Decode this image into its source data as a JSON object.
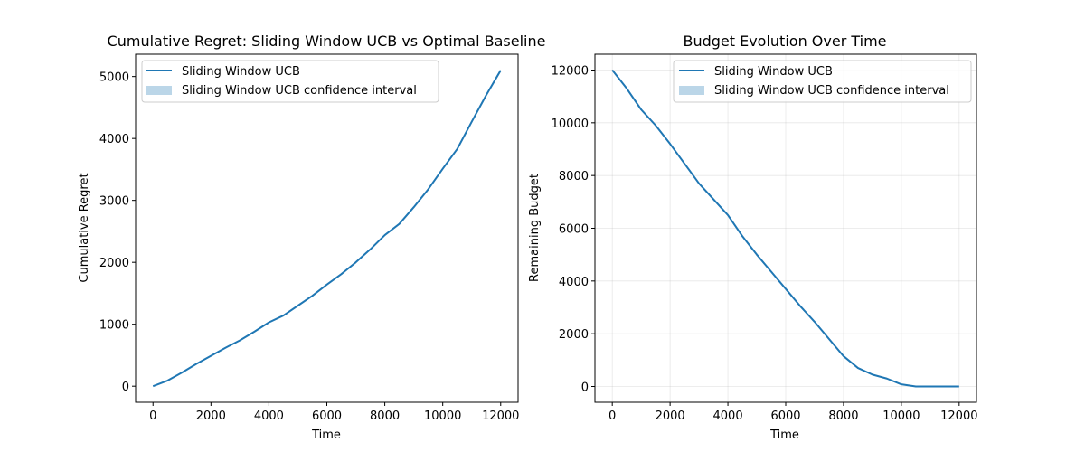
{
  "chart_data": [
    {
      "type": "line",
      "title": "Cumulative Regret: Sliding Window UCB vs Optimal Baseline",
      "xlabel": "Time",
      "ylabel": "Cumulative Regret",
      "xlim": [
        -600,
        12600
      ],
      "ylim": [
        -260,
        5360
      ],
      "xticks": [
        0,
        2000,
        4000,
        6000,
        8000,
        10000,
        12000
      ],
      "yticks": [
        0,
        1000,
        2000,
        3000,
        4000,
        5000
      ],
      "grid": false,
      "legend_position": "top-left",
      "legend": [
        "Sliding Window UCB",
        "Sliding Window UCB confidence interval"
      ],
      "series": [
        {
          "name": "Sliding Window UCB",
          "color": "#1f77b4",
          "x": [
            0,
            500,
            1000,
            1500,
            2000,
            2500,
            3000,
            3500,
            4000,
            4500,
            5000,
            5500,
            6000,
            6500,
            7000,
            7500,
            8000,
            8500,
            9000,
            9500,
            10000,
            10500,
            11000,
            11500,
            12000
          ],
          "y": [
            0,
            90,
            220,
            360,
            490,
            620,
            740,
            880,
            1030,
            1140,
            1300,
            1460,
            1640,
            1810,
            2000,
            2210,
            2440,
            2620,
            2890,
            3180,
            3510,
            3830,
            4270,
            4700,
            5100
          ]
        }
      ],
      "confidence_interval": {
        "name": "Sliding Window UCB confidence interval",
        "color": "#1f77b4",
        "opacity": 0.3
      }
    },
    {
      "type": "line",
      "title": "Budget Evolution Over Time",
      "xlabel": "Time",
      "ylabel": "Remaining Budget",
      "xlim": [
        -600,
        12600
      ],
      "ylim": [
        -600,
        12600
      ],
      "xticks": [
        0,
        2000,
        4000,
        6000,
        8000,
        10000,
        12000
      ],
      "yticks": [
        0,
        2000,
        4000,
        6000,
        8000,
        10000,
        12000
      ],
      "grid": true,
      "legend_position": "top-right",
      "legend": [
        "Sliding Window UCB",
        "Sliding Window UCB confidence interval"
      ],
      "series": [
        {
          "name": "Sliding Window UCB",
          "color": "#1f77b4",
          "x": [
            0,
            500,
            1000,
            1500,
            2000,
            2500,
            3000,
            3500,
            4000,
            4500,
            5000,
            5500,
            6000,
            6500,
            7000,
            7500,
            8000,
            8500,
            9000,
            9500,
            10000,
            10500,
            10700,
            11000,
            11500,
            12000
          ],
          "y": [
            12000,
            11300,
            10500,
            9900,
            9200,
            8450,
            7700,
            7100,
            6500,
            5700,
            5000,
            4350,
            3700,
            3050,
            2450,
            1800,
            1150,
            700,
            450,
            300,
            80,
            0,
            0,
            0,
            0,
            0
          ]
        }
      ],
      "confidence_interval": {
        "name": "Sliding Window UCB confidence interval",
        "color": "#1f77b4",
        "opacity": 0.3
      }
    }
  ]
}
